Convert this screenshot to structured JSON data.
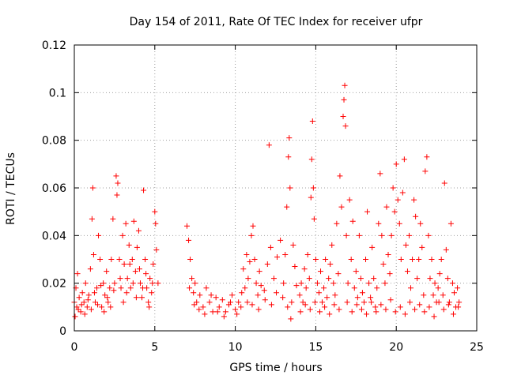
{
  "chart_data": {
    "type": "scatter",
    "title": "Day 154 of 2011, Rate Of TEC Index for receiver ufpr",
    "xlabel": "GPS time / hours",
    "ylabel": "ROTI / TECUs",
    "xlim": [
      0,
      25
    ],
    "ylim": [
      0,
      0.12
    ],
    "x_ticks": [
      0,
      5,
      10,
      15,
      20,
      25
    ],
    "x_tick_labels": [
      "0",
      "5",
      "10",
      "15",
      "20",
      "25"
    ],
    "y_ticks": [
      0,
      0.02,
      0.04,
      0.06,
      0.08,
      0.1,
      0.12
    ],
    "y_tick_labels": [
      "0",
      "0.02",
      "0.04",
      "0.06",
      "0.08",
      "0.1",
      "0.12"
    ],
    "grid": true,
    "marker": "+",
    "color": "#ff0000",
    "series": [
      {
        "points": [
          [
            0.0,
            0.012
          ],
          [
            0.1,
            0.018
          ],
          [
            0.15,
            0.01
          ],
          [
            0.2,
            0.024
          ],
          [
            0.3,
            0.014
          ],
          [
            0.4,
            0.008
          ],
          [
            0.5,
            0.016
          ],
          [
            0.6,
            0.012
          ],
          [
            0.7,
            0.02
          ],
          [
            0.8,
            0.01
          ],
          [
            0.9,
            0.015
          ],
          [
            1.0,
            0.026
          ],
          [
            1.1,
            0.047
          ],
          [
            1.15,
            0.06
          ],
          [
            1.2,
            0.032
          ],
          [
            1.3,
            0.012
          ],
          [
            1.4,
            0.018
          ],
          [
            1.5,
            0.04
          ],
          [
            1.6,
            0.03
          ],
          [
            1.7,
            0.01
          ],
          [
            1.8,
            0.02
          ],
          [
            1.9,
            0.015
          ],
          [
            2.0,
            0.025
          ],
          [
            2.1,
            0.012
          ],
          [
            2.2,
            0.018
          ],
          [
            2.3,
            0.03
          ],
          [
            2.4,
            0.047
          ],
          [
            2.5,
            0.02
          ],
          [
            2.6,
            0.065
          ],
          [
            2.65,
            0.057
          ],
          [
            2.7,
            0.062
          ],
          [
            2.8,
            0.03
          ],
          [
            2.9,
            0.018
          ],
          [
            3.0,
            0.04
          ],
          [
            3.1,
            0.028
          ],
          [
            3.2,
            0.045
          ],
          [
            3.3,
            0.022
          ],
          [
            3.4,
            0.036
          ],
          [
            3.5,
            0.018
          ],
          [
            3.6,
            0.03
          ],
          [
            3.7,
            0.046
          ],
          [
            3.8,
            0.025
          ],
          [
            3.9,
            0.035
          ],
          [
            4.0,
            0.042
          ],
          [
            4.1,
            0.02
          ],
          [
            4.2,
            0.014
          ],
          [
            4.3,
            0.059
          ],
          [
            4.4,
            0.03
          ],
          [
            4.5,
            0.018
          ],
          [
            4.6,
            0.012
          ],
          [
            4.7,
            0.022
          ],
          [
            4.8,
            0.016
          ],
          [
            4.9,
            0.028
          ],
          [
            5.0,
            0.05
          ],
          [
            5.05,
            0.045
          ],
          [
            5.1,
            0.034
          ],
          [
            5.2,
            0.02
          ],
          [
            0.05,
            0.006
          ],
          [
            0.25,
            0.009
          ],
          [
            0.45,
            0.011
          ],
          [
            0.65,
            0.007
          ],
          [
            0.85,
            0.013
          ],
          [
            1.05,
            0.009
          ],
          [
            1.25,
            0.016
          ],
          [
            1.45,
            0.011
          ],
          [
            1.65,
            0.019
          ],
          [
            1.85,
            0.008
          ],
          [
            2.05,
            0.014
          ],
          [
            2.25,
            0.01
          ],
          [
            2.45,
            0.017
          ],
          [
            2.85,
            0.022
          ],
          [
            3.05,
            0.012
          ],
          [
            3.25,
            0.016
          ],
          [
            3.45,
            0.028
          ],
          [
            3.65,
            0.02
          ],
          [
            3.85,
            0.014
          ],
          [
            4.05,
            0.026
          ],
          [
            4.25,
            0.018
          ],
          [
            4.45,
            0.024
          ],
          [
            4.65,
            0.01
          ],
          [
            4.85,
            0.02
          ],
          [
            7.0,
            0.044
          ],
          [
            7.1,
            0.038
          ],
          [
            7.2,
            0.03
          ],
          [
            7.3,
            0.022
          ],
          [
            7.4,
            0.016
          ],
          [
            7.5,
            0.02
          ],
          [
            7.6,
            0.012
          ],
          [
            7.8,
            0.015
          ],
          [
            8.0,
            0.01
          ],
          [
            8.2,
            0.018
          ],
          [
            8.4,
            0.012
          ],
          [
            8.6,
            0.008
          ],
          [
            8.8,
            0.014
          ],
          [
            9.0,
            0.01
          ],
          [
            9.2,
            0.013
          ],
          [
            9.4,
            0.008
          ],
          [
            9.6,
            0.011
          ],
          [
            9.8,
            0.015
          ],
          [
            10.0,
            0.009
          ],
          [
            10.2,
            0.012
          ],
          [
            10.4,
            0.016
          ],
          [
            10.5,
            0.026
          ],
          [
            10.6,
            0.018
          ],
          [
            10.7,
            0.032
          ],
          [
            10.8,
            0.022
          ],
          [
            10.9,
            0.029
          ],
          [
            11.0,
            0.04
          ],
          [
            11.1,
            0.044
          ],
          [
            11.2,
            0.03
          ],
          [
            11.3,
            0.02
          ],
          [
            11.4,
            0.015
          ],
          [
            11.5,
            0.025
          ],
          [
            11.6,
            0.019
          ],
          [
            11.8,
            0.017
          ],
          [
            12.0,
            0.028
          ],
          [
            12.1,
            0.078
          ],
          [
            12.2,
            0.035
          ],
          [
            12.4,
            0.022
          ],
          [
            12.6,
            0.031
          ],
          [
            12.8,
            0.038
          ],
          [
            13.0,
            0.02
          ],
          [
            13.1,
            0.032
          ],
          [
            13.2,
            0.052
          ],
          [
            13.3,
            0.073
          ],
          [
            13.35,
            0.081
          ],
          [
            13.4,
            0.06
          ],
          [
            13.5,
            0.012
          ],
          [
            13.6,
            0.036
          ],
          [
            13.7,
            0.027
          ],
          [
            13.8,
            0.019
          ],
          [
            7.15,
            0.018
          ],
          [
            7.45,
            0.011
          ],
          [
            7.75,
            0.009
          ],
          [
            8.1,
            0.007
          ],
          [
            8.5,
            0.015
          ],
          [
            8.9,
            0.008
          ],
          [
            9.3,
            0.006
          ],
          [
            9.7,
            0.012
          ],
          [
            10.1,
            0.007
          ],
          [
            10.35,
            0.01
          ],
          [
            10.75,
            0.012
          ],
          [
            11.05,
            0.011
          ],
          [
            11.45,
            0.009
          ],
          [
            11.85,
            0.013
          ],
          [
            12.25,
            0.011
          ],
          [
            12.55,
            0.016
          ],
          [
            12.95,
            0.014
          ],
          [
            13.25,
            0.01
          ],
          [
            13.45,
            0.005
          ],
          [
            14.0,
            0.015
          ],
          [
            14.1,
            0.02
          ],
          [
            14.2,
            0.012
          ],
          [
            14.3,
            0.026
          ],
          [
            14.4,
            0.018
          ],
          [
            14.5,
            0.032
          ],
          [
            14.6,
            0.022
          ],
          [
            14.7,
            0.056
          ],
          [
            14.75,
            0.072
          ],
          [
            14.8,
            0.088
          ],
          [
            14.85,
            0.06
          ],
          [
            14.9,
            0.047
          ],
          [
            15.0,
            0.03
          ],
          [
            15.1,
            0.02
          ],
          [
            15.2,
            0.016
          ],
          [
            15.3,
            0.025
          ],
          [
            15.4,
            0.012
          ],
          [
            15.5,
            0.018
          ],
          [
            15.6,
            0.03
          ],
          [
            15.7,
            0.014
          ],
          [
            15.8,
            0.022
          ],
          [
            15.9,
            0.028
          ],
          [
            16.0,
            0.036
          ],
          [
            16.1,
            0.02
          ],
          [
            16.2,
            0.015
          ],
          [
            16.3,
            0.045
          ],
          [
            16.4,
            0.024
          ],
          [
            16.5,
            0.065
          ],
          [
            16.6,
            0.052
          ],
          [
            16.7,
            0.09
          ],
          [
            16.75,
            0.097
          ],
          [
            16.8,
            0.103
          ],
          [
            16.85,
            0.086
          ],
          [
            16.9,
            0.04
          ],
          [
            17.0,
            0.02
          ],
          [
            17.1,
            0.055
          ],
          [
            17.2,
            0.03
          ],
          [
            17.3,
            0.046
          ],
          [
            17.4,
            0.018
          ],
          [
            17.5,
            0.025
          ],
          [
            17.6,
            0.014
          ],
          [
            17.7,
            0.04
          ],
          [
            17.8,
            0.022
          ],
          [
            17.9,
            0.016
          ],
          [
            18.0,
            0.012
          ],
          [
            18.1,
            0.03
          ],
          [
            18.2,
            0.05
          ],
          [
            18.3,
            0.02
          ],
          [
            18.4,
            0.014
          ],
          [
            18.5,
            0.035
          ],
          [
            18.6,
            0.022
          ],
          [
            18.7,
            0.01
          ],
          [
            18.8,
            0.018
          ],
          [
            18.9,
            0.045
          ],
          [
            19.0,
            0.066
          ],
          [
            19.1,
            0.04
          ],
          [
            19.2,
            0.028
          ],
          [
            19.3,
            0.02
          ],
          [
            19.4,
            0.052
          ],
          [
            19.5,
            0.032
          ],
          [
            19.6,
            0.024
          ],
          [
            19.7,
            0.04
          ],
          [
            19.8,
            0.06
          ],
          [
            19.9,
            0.05
          ],
          [
            20.0,
            0.07
          ],
          [
            20.1,
            0.055
          ],
          [
            20.2,
            0.045
          ],
          [
            20.3,
            0.03
          ],
          [
            20.4,
            0.058
          ],
          [
            20.5,
            0.072
          ],
          [
            20.6,
            0.036
          ],
          [
            20.7,
            0.025
          ],
          [
            20.8,
            0.04
          ],
          [
            20.9,
            0.018
          ],
          [
            21.0,
            0.03
          ],
          [
            21.1,
            0.055
          ],
          [
            21.2,
            0.048
          ],
          [
            21.3,
            0.022
          ],
          [
            21.4,
            0.03
          ],
          [
            21.5,
            0.045
          ],
          [
            21.6,
            0.035
          ],
          [
            21.7,
            0.015
          ],
          [
            21.8,
            0.067
          ],
          [
            21.9,
            0.073
          ],
          [
            22.0,
            0.04
          ],
          [
            22.1,
            0.022
          ],
          [
            22.2,
            0.03
          ],
          [
            22.3,
            0.015
          ],
          [
            22.4,
            0.02
          ],
          [
            22.5,
            0.012
          ],
          [
            22.6,
            0.018
          ],
          [
            22.7,
            0.024
          ],
          [
            22.8,
            0.03
          ],
          [
            22.9,
            0.015
          ],
          [
            23.0,
            0.062
          ],
          [
            23.1,
            0.034
          ],
          [
            23.2,
            0.022
          ],
          [
            23.3,
            0.012
          ],
          [
            23.4,
            0.045
          ],
          [
            23.5,
            0.02
          ],
          [
            23.6,
            0.016
          ],
          [
            23.7,
            0.01
          ],
          [
            23.8,
            0.018
          ],
          [
            23.9,
            0.012
          ],
          [
            14.05,
            0.008
          ],
          [
            14.35,
            0.011
          ],
          [
            14.65,
            0.009
          ],
          [
            14.95,
            0.012
          ],
          [
            15.25,
            0.008
          ],
          [
            15.55,
            0.01
          ],
          [
            15.85,
            0.007
          ],
          [
            16.15,
            0.011
          ],
          [
            16.45,
            0.009
          ],
          [
            16.95,
            0.012
          ],
          [
            17.25,
            0.008
          ],
          [
            17.55,
            0.011
          ],
          [
            17.85,
            0.009
          ],
          [
            18.15,
            0.007
          ],
          [
            18.45,
            0.012
          ],
          [
            18.75,
            0.008
          ],
          [
            19.05,
            0.011
          ],
          [
            19.35,
            0.009
          ],
          [
            19.65,
            0.013
          ],
          [
            19.95,
            0.008
          ],
          [
            20.25,
            0.01
          ],
          [
            20.55,
            0.007
          ],
          [
            20.85,
            0.012
          ],
          [
            21.15,
            0.009
          ],
          [
            21.45,
            0.011
          ],
          [
            21.75,
            0.008
          ],
          [
            22.05,
            0.01
          ],
          [
            22.35,
            0.006
          ],
          [
            22.65,
            0.012
          ],
          [
            22.95,
            0.009
          ],
          [
            23.25,
            0.011
          ],
          [
            23.55,
            0.007
          ],
          [
            23.85,
            0.01
          ]
        ]
      }
    ]
  }
}
